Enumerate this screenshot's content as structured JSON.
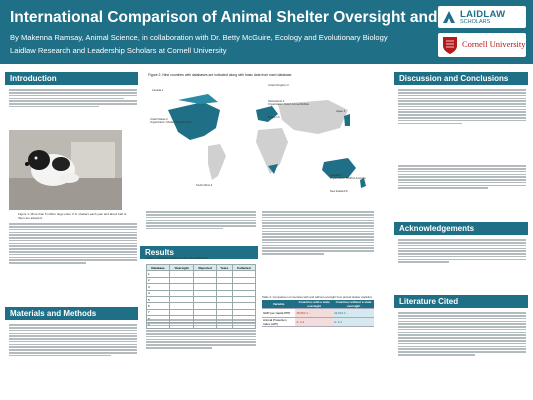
{
  "header": {
    "title": "International Comparison of Animal Shelter Oversight and Policies",
    "authors": "By Makenna Ramsay, Animal Science, in collaboration with Dr. Betty McGuire, Ecology and Evolutionary Biology",
    "affiliation": "Laidlaw Research and Leadership Scholars at Cornell University",
    "logo1_text": "LAIDLAW",
    "logo1_sub": "SCHOLARS",
    "logo2_text": "Cornell University"
  },
  "sections": {
    "introduction": "Introduction",
    "materials_methods": "Materials and Methods",
    "results": "Results",
    "discussion": "Discussion and Conclusions",
    "acknowledgements": "Acknowledgements",
    "literature": "Literature Cited"
  },
  "figure1": {
    "caption": "Figure 1: More than 5 million dogs enter U.S. shelters each year and about half of them are adopted."
  },
  "figure2": {
    "title": "Figure 2: Nine countries with databases are indicated along with basic data from each database."
  },
  "map_annotations": [
    "Canada 1",
    "Organization: Humane Canada",
    "United States 2",
    "Organization: Shelter Animals Count",
    "United Kingdom 3",
    "Netherlands 4",
    "Organization: Dutch Animal Welfare",
    "Belgium 5",
    "Japan 6",
    "Australia 7",
    "Organization: RSPCA Australia",
    "New Zealand 8",
    "South Africa 9"
  ],
  "table1": {
    "title": "Table 1: Methods related to the nine databases",
    "headers": [
      "Database",
      "Oversight",
      "Reported",
      "Years",
      "Collected"
    ],
    "rows": [
      [
        "1",
        "",
        "",
        "",
        ""
      ],
      [
        "2",
        "",
        "",
        "",
        ""
      ],
      [
        "3",
        "",
        "",
        "",
        ""
      ],
      [
        "4",
        "",
        "",
        "",
        ""
      ],
      [
        "5",
        "",
        "",
        "",
        ""
      ],
      [
        "6",
        "",
        "",
        "",
        ""
      ],
      [
        "7",
        "",
        "",
        "",
        ""
      ],
      [
        "8",
        "",
        "",
        "",
        ""
      ],
      [
        "9",
        "",
        "",
        "",
        ""
      ]
    ]
  },
  "table2": {
    "title": "Table 2: Comparison of countries with and without oversight from animal shelter statistics",
    "headers": [
      "Variable",
      "Countries with a state oversight",
      "Countries without a state oversight"
    ],
    "rows": [
      [
        "GDP per capita PPP",
        "48,952 ± ...",
        "44,012 ± ..."
      ],
      [
        "Animal Protection Index (API)",
        "A: 3.4",
        "A: 3.1"
      ]
    ]
  },
  "colors": {
    "accent": "#1f6f86",
    "red": "#c0392b"
  }
}
